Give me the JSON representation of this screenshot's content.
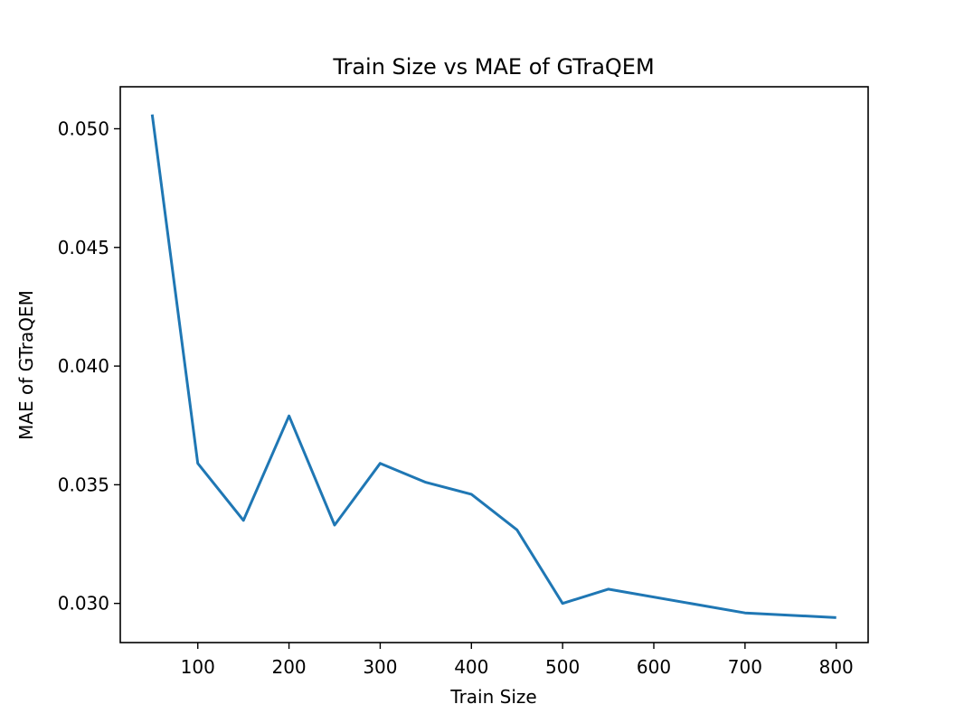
{
  "chart_data": {
    "type": "line",
    "title": "Train Size vs MAE of GTraQEM",
    "xlabel": "Train Size",
    "ylabel": "MAE of GTraQEM",
    "xlim": [
      15,
      835
    ],
    "ylim": [
      0.02835,
      0.05177
    ],
    "xticks": [
      100,
      200,
      300,
      400,
      500,
      600,
      700,
      800
    ],
    "xtick_labels": [
      "100",
      "200",
      "300",
      "400",
      "500",
      "600",
      "700",
      "800"
    ],
    "yticks": [
      0.03,
      0.035,
      0.04,
      0.045,
      0.05
    ],
    "ytick_labels": [
      "0.030",
      "0.035",
      "0.040",
      "0.045",
      "0.050"
    ],
    "grid": false,
    "legend": null,
    "series": [
      {
        "name": "MAE of GTraQEM",
        "color": "#1f77b4",
        "x": [
          50,
          100,
          150,
          200,
          250,
          300,
          350,
          400,
          450,
          500,
          550,
          700,
          800
        ],
        "values": [
          0.0506,
          0.0359,
          0.0335,
          0.0379,
          0.0333,
          0.0359,
          0.0351,
          0.0346,
          0.0331,
          0.03,
          0.0306,
          0.0296,
          0.0294
        ]
      }
    ]
  }
}
